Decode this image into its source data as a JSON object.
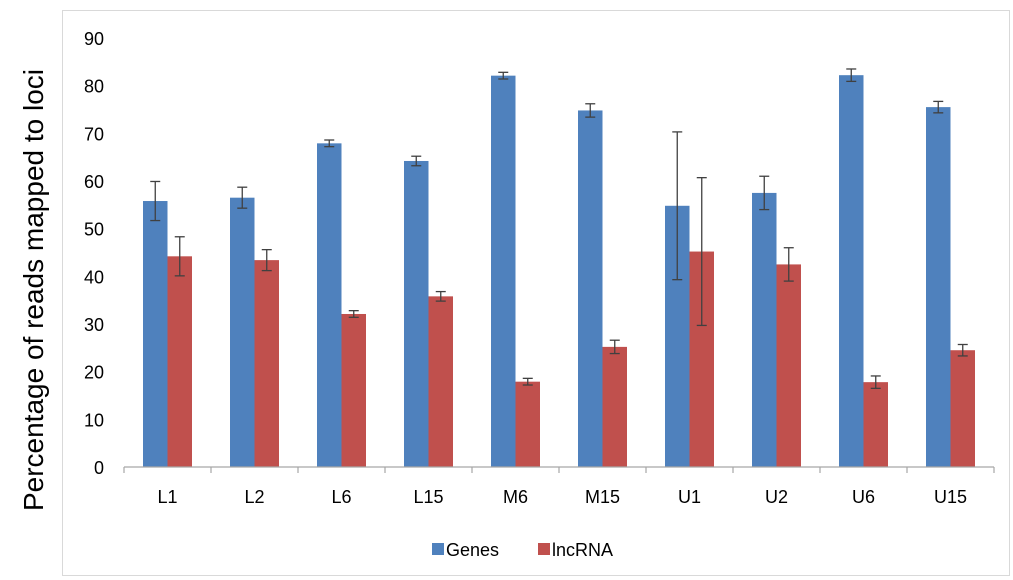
{
  "chart_data": {
    "type": "bar",
    "title": "",
    "xlabel": "",
    "ylabel": "Percentage of reads mapped to loci",
    "ylim": [
      0,
      90
    ],
    "yticks": [
      0,
      10,
      20,
      30,
      40,
      50,
      60,
      70,
      80,
      90
    ],
    "categories": [
      "L1",
      "L2",
      "L6",
      "L15",
      "M6",
      "M15",
      "U1",
      "U2",
      "U6",
      "U15"
    ],
    "series": [
      {
        "name": "Genes",
        "color": "#4f81bd",
        "values": [
          55.8,
          56.5,
          67.9,
          64.2,
          82.1,
          74.8,
          54.8,
          57.5,
          82.2,
          75.5
        ],
        "errors": [
          4.1,
          2.2,
          0.7,
          1.0,
          0.7,
          1.4,
          15.5,
          3.5,
          1.3,
          1.2
        ]
      },
      {
        "name": "lncRNA",
        "color": "#c0504d",
        "values": [
          44.2,
          43.4,
          32.1,
          35.8,
          17.9,
          25.2,
          45.2,
          42.5,
          17.8,
          24.5
        ],
        "errors": [
          4.1,
          2.2,
          0.7,
          1.0,
          0.7,
          1.4,
          15.5,
          3.5,
          1.3,
          1.2
        ]
      }
    ],
    "grid": false,
    "legend_position": "bottom"
  }
}
